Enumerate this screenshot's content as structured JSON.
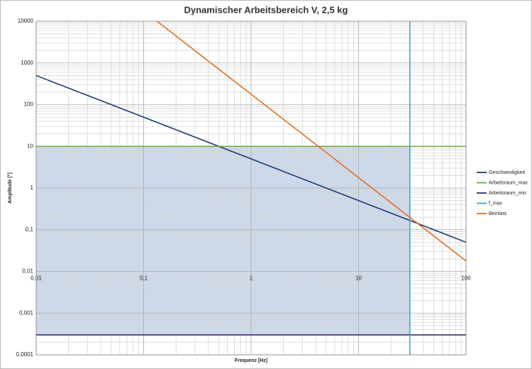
{
  "chart_data": {
    "type": "line",
    "title": "Dynamischer Arbeitsbereich V, 2,5 kg",
    "x_label": "Frequenz [Hz]",
    "y_label": "Amplitude [°]",
    "log_x": true,
    "log_y": true,
    "grid": true,
    "minor_grid": true,
    "legend": "right",
    "xlim": [
      0.01,
      100
    ],
    "xticks": [
      {
        "value": 0.01,
        "label": "0,01"
      },
      {
        "value": 0.1,
        "label": "0,1"
      },
      1,
      10,
      100
    ],
    "ylim": [
      0.0001,
      10000
    ],
    "yticks": [
      {
        "value": 0.0001,
        "label": "0,0001"
      },
      {
        "value": 0.001,
        "label": "0,001"
      },
      {
        "value": 0.01,
        "label": "0,01"
      },
      {
        "value": 0.1,
        "label": "0,1"
      },
      1,
      10,
      100,
      1000,
      10000
    ],
    "series": [
      {
        "name": "Geschwindigkeit",
        "color": "#1f3b73",
        "x": [
          0.01,
          100
        ],
        "values": [
          500,
          0.05
        ]
      },
      {
        "name": "Arbeitsraum_max",
        "color": "#70a83b",
        "x": [
          0.01,
          100
        ],
        "values": [
          10,
          10
        ]
      },
      {
        "name": "Arbeitsraum_min",
        "color": "#3d2b6b",
        "x": [
          0.01,
          100
        ],
        "values": [
          0.0003,
          0.0003
        ]
      },
      {
        "name": "f_max",
        "color": "#3fa9c0",
        "x": [
          30,
          30
        ],
        "values": [
          0.0001,
          10000
        ]
      },
      {
        "name": "Beinlast",
        "color": "#e46c1f",
        "x": [
          0.1,
          100
        ],
        "values": [
          17800,
          0.0178
        ]
      }
    ],
    "area_color": "#c6d5e8"
  }
}
